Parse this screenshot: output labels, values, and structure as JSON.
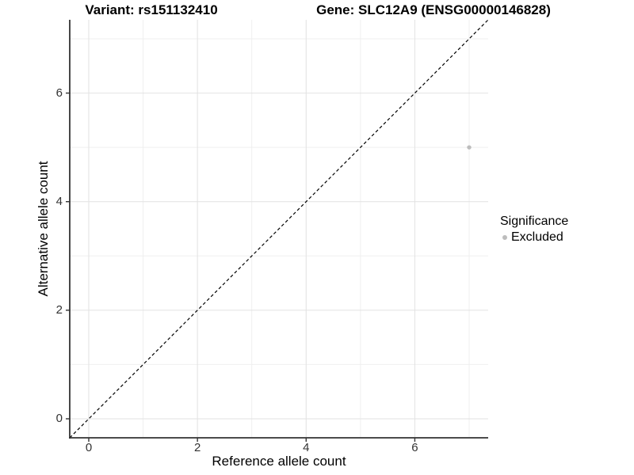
{
  "header": {
    "title_left": "Variant: rs151132410",
    "title_right": "Gene: SLC12A9 (ENSG00000146828)"
  },
  "legend": {
    "title": "Significance",
    "items": [
      {
        "label": "Excluded",
        "color": "#bdbdbd"
      }
    ]
  },
  "chart_data": {
    "type": "scatter",
    "titles": [
      "Variant: rs151132410",
      "Gene: SLC12A9 (ENSG00000146828)"
    ],
    "xlabel": "Reference allele count",
    "ylabel": "Alternative allele count",
    "xlim": [
      -0.35,
      7.35
    ],
    "ylim": [
      -0.35,
      7.35
    ],
    "xticks": [
      0,
      2,
      4,
      6
    ],
    "yticks": [
      0,
      2,
      4,
      6
    ],
    "xminor": [
      1,
      3,
      5,
      7
    ],
    "yminor": [
      1,
      3,
      5,
      7
    ],
    "grid": "major+minor",
    "legend_position": "right",
    "reference_line": {
      "equation": "y = x",
      "style": "dashed",
      "color": "#000000"
    },
    "series": [
      {
        "name": "Excluded",
        "color": "#bdbdbd",
        "points": [
          [
            7,
            5
          ]
        ]
      }
    ],
    "colors": {
      "grid_major": "#e2e2e2",
      "grid_minor": "#efefef",
      "axis_line": "#333333",
      "tick_mark": "#333333",
      "background": "#ffffff"
    }
  }
}
